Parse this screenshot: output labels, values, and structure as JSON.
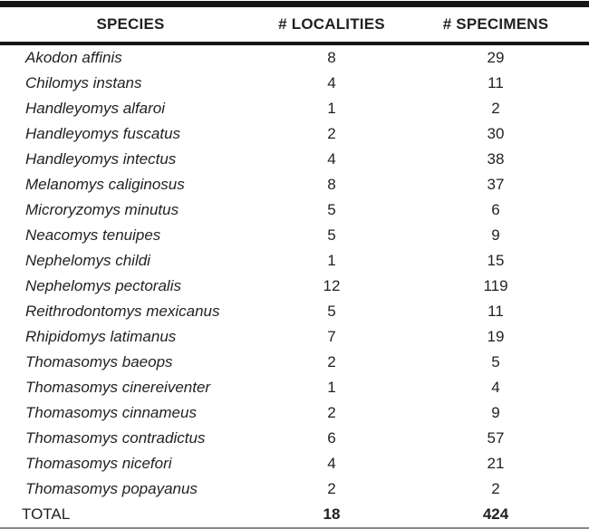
{
  "colors": {
    "text": "#231f20",
    "heavy_rule": "#181415",
    "bottom_rule": "#8a8a8a",
    "background": "#ffffff"
  },
  "chart_data": {
    "type": "table",
    "columns": [
      "SPECIES",
      "# LOCALITIES",
      "# SPECIMENS"
    ],
    "rows": [
      {
        "species": "Akodon affinis",
        "localities": "8",
        "specimens": "29"
      },
      {
        "species": "Chilomys instans",
        "localities": "4",
        "specimens": "11"
      },
      {
        "species": "Handleyomys alfaroi",
        "localities": "1",
        "specimens": "2"
      },
      {
        "species": "Handleyomys fuscatus",
        "localities": "2",
        "specimens": "30"
      },
      {
        "species": "Handleyomys intectus",
        "localities": "4",
        "specimens": "38"
      },
      {
        "species": "Melanomys caliginosus",
        "localities": "8",
        "specimens": "37"
      },
      {
        "species": "Microryzomys minutus",
        "localities": "5",
        "specimens": "6"
      },
      {
        "species": "Neacomys tenuipes",
        "localities": "5",
        "specimens": "9"
      },
      {
        "species": "Nephelomys childi",
        "localities": "1",
        "specimens": "15"
      },
      {
        "species": "Nephelomys pectoralis",
        "localities": "12",
        "specimens": "119"
      },
      {
        "species": "Reithrodontomys mexicanus",
        "localities": "5",
        "specimens": "11"
      },
      {
        "species": "Rhipidomys latimanus",
        "localities": "7",
        "specimens": "19"
      },
      {
        "species": "Thomasomys baeops",
        "localities": "2",
        "specimens": "5"
      },
      {
        "species": "Thomasomys cinereiventer",
        "localities": "1",
        "specimens": "4"
      },
      {
        "species": "Thomasomys cinnameus",
        "localities": "2",
        "specimens": "9"
      },
      {
        "species": "Thomasomys contradictus",
        "localities": "6",
        "specimens": "57"
      },
      {
        "species": "Thomasomys nicefori",
        "localities": "4",
        "specimens": "21"
      },
      {
        "species": "Thomasomys popayanus",
        "localities": "2",
        "specimens": "2"
      }
    ],
    "total_row": {
      "label": "TOTAL",
      "localities": "18",
      "specimens": "424"
    }
  }
}
